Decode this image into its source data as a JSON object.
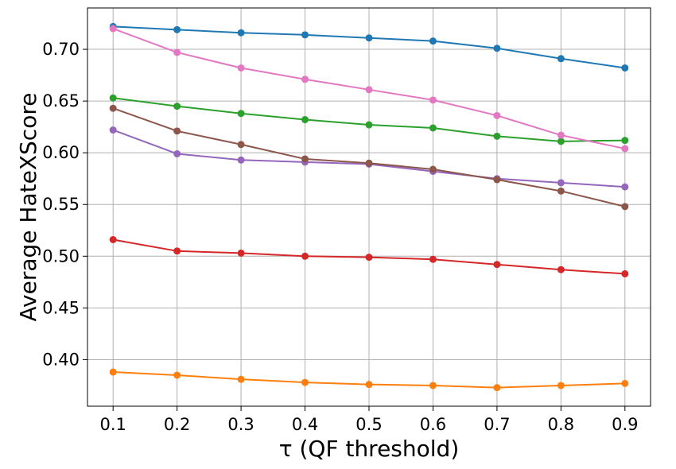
{
  "chart_data": {
    "type": "line",
    "title": "",
    "xlabel": "τ (QF threshold)",
    "ylabel": "Average HateXScore",
    "x": [
      0.1,
      0.2,
      0.3,
      0.4,
      0.5,
      0.6,
      0.7,
      0.8,
      0.9
    ],
    "xticks": [
      "0.1",
      "0.2",
      "0.3",
      "0.4",
      "0.5",
      "0.6",
      "0.7",
      "0.8",
      "0.9"
    ],
    "yticks": [
      "0.40",
      "0.45",
      "0.50",
      "0.55",
      "0.60",
      "0.65",
      "0.70"
    ],
    "xlim": [
      0.06,
      0.94
    ],
    "ylim": [
      0.355,
      0.74
    ],
    "grid": true,
    "series": [
      {
        "color": "#1f77b4",
        "values": [
          0.722,
          0.719,
          0.716,
          0.714,
          0.711,
          0.708,
          0.701,
          0.691,
          0.682
        ]
      },
      {
        "color": "#ff7f0e",
        "values": [
          0.388,
          0.385,
          0.381,
          0.378,
          0.376,
          0.375,
          0.373,
          0.375,
          0.377
        ]
      },
      {
        "color": "#2ca02c",
        "values": [
          0.653,
          0.645,
          0.638,
          0.632,
          0.627,
          0.624,
          0.616,
          0.611,
          0.612
        ]
      },
      {
        "color": "#d62728",
        "values": [
          0.516,
          0.505,
          0.503,
          0.5,
          0.499,
          0.497,
          0.492,
          0.487,
          0.483
        ]
      },
      {
        "color": "#9467bd",
        "values": [
          0.622,
          0.599,
          0.593,
          0.591,
          0.589,
          0.582,
          0.575,
          0.571,
          0.567
        ]
      },
      {
        "color": "#8c564b",
        "values": [
          0.643,
          0.621,
          0.608,
          0.594,
          0.59,
          0.584,
          0.574,
          0.563,
          0.548
        ]
      },
      {
        "color": "#e377c2",
        "values": [
          0.72,
          0.697,
          0.682,
          0.671,
          0.661,
          0.651,
          0.636,
          0.617,
          0.604
        ]
      }
    ]
  }
}
